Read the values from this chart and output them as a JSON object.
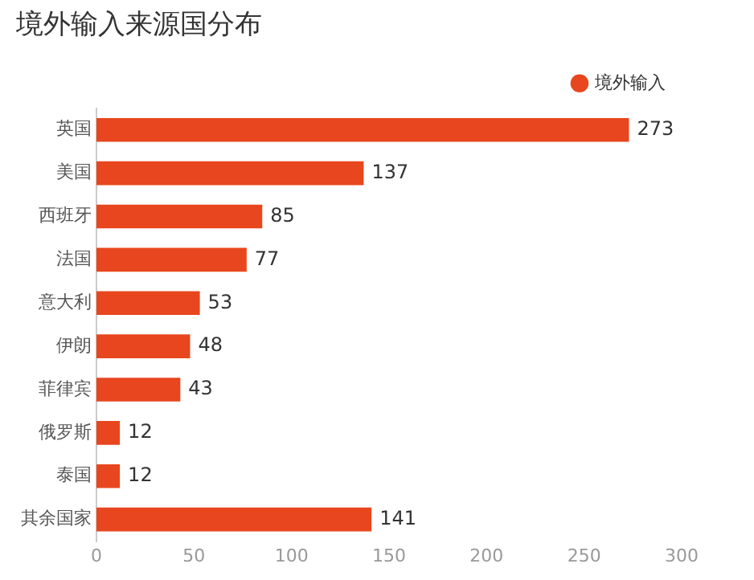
{
  "chart_data": {
    "type": "bar",
    "orientation": "horizontal",
    "title": "境外输入来源国分布",
    "categories": [
      "英国",
      "美国",
      "西班牙",
      "法国",
      "意大利",
      "伊朗",
      "菲律宾",
      "俄罗斯",
      "泰国",
      "其余国家"
    ],
    "series": [
      {
        "name": "境外输入",
        "color": "#e8461e",
        "values": [
          273,
          137,
          85,
          77,
          53,
          48,
          43,
          12,
          12,
          141
        ]
      }
    ],
    "xlim": [
      0,
      300
    ],
    "xticks": [
      0,
      50,
      100,
      150,
      200,
      250,
      300
    ],
    "data_labels": true,
    "legend": "top right",
    "grid": false
  }
}
